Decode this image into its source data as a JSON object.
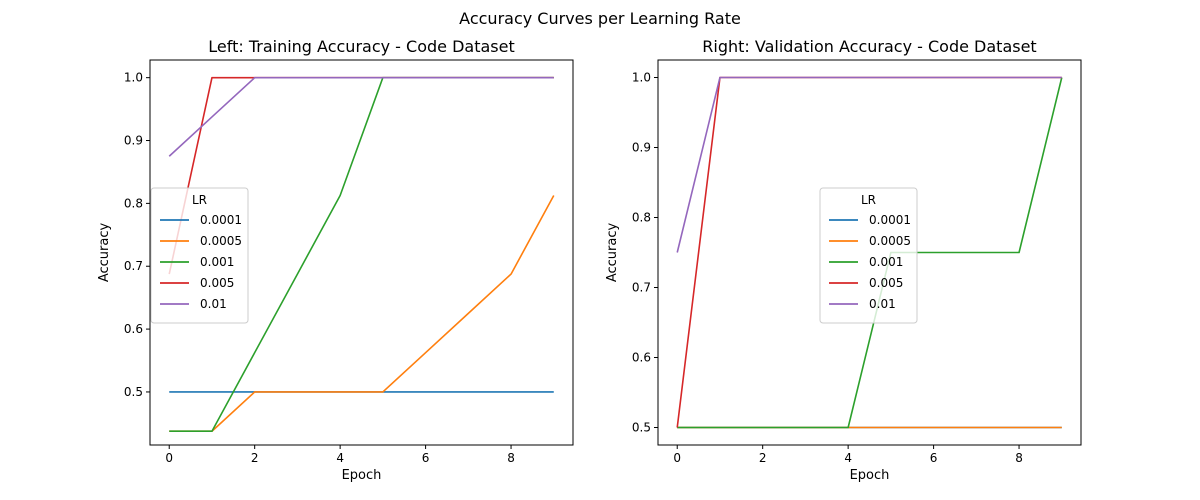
{
  "figure": {
    "suptitle": "Accuracy Curves per Learning Rate"
  },
  "colors": {
    "0.0001": "#1f77b4",
    "0.0005": "#ff7f0e",
    "0.001": "#2ca02c",
    "0.005": "#d62728",
    "0.01": "#9467bd"
  },
  "chart_data": [
    {
      "type": "line",
      "title": "Left: Training Accuracy - Code Dataset",
      "xlabel": "Epoch",
      "ylabel": "Accuracy",
      "xlim": [
        -0.45,
        9.45
      ],
      "ylim": [
        0.4156,
        1.0281
      ],
      "xticks": [
        0,
        2,
        4,
        6,
        8
      ],
      "xtick_labels": [
        "0",
        "2",
        "4",
        "6",
        "8"
      ],
      "yticks": [
        0.5,
        0.6,
        0.7,
        0.8,
        0.9,
        1.0
      ],
      "ytick_labels": [
        "0.5",
        "0.6",
        "0.7",
        "0.8",
        "0.9",
        "1.0"
      ],
      "grid": false,
      "legend": {
        "title": "LR",
        "position": "center-left"
      },
      "x": [
        0,
        1,
        2,
        3,
        4,
        5,
        6,
        7,
        8,
        9
      ],
      "series": [
        {
          "name": "0.0001",
          "values": [
            0.5,
            0.5,
            0.5,
            0.5,
            0.5,
            0.5,
            0.5,
            0.5,
            0.5,
            0.5
          ]
        },
        {
          "name": "0.0005",
          "values": [
            0.4375,
            0.4375,
            0.5,
            0.5,
            0.5,
            0.5,
            0.5625,
            0.625,
            0.6875,
            0.8125
          ]
        },
        {
          "name": "0.001",
          "values": [
            0.4375,
            0.4375,
            0.5625,
            0.6875,
            0.8125,
            1.0,
            1.0,
            1.0,
            1.0,
            1.0
          ]
        },
        {
          "name": "0.005",
          "values": [
            0.6875,
            1.0,
            1.0,
            1.0,
            1.0,
            1.0,
            1.0,
            1.0,
            1.0,
            1.0
          ]
        },
        {
          "name": "0.01",
          "values": [
            0.875,
            0.9375,
            1.0,
            1.0,
            1.0,
            1.0,
            1.0,
            1.0,
            1.0,
            1.0
          ]
        }
      ]
    },
    {
      "type": "line",
      "title": "Right: Validation Accuracy - Code Dataset",
      "xlabel": "Epoch",
      "ylabel": "Accuracy",
      "xlim": [
        -0.45,
        9.45
      ],
      "ylim": [
        0.475,
        1.025
      ],
      "xticks": [
        0,
        2,
        4,
        6,
        8
      ],
      "xtick_labels": [
        "0",
        "2",
        "4",
        "6",
        "8"
      ],
      "yticks": [
        0.5,
        0.6,
        0.7,
        0.8,
        0.9,
        1.0
      ],
      "ytick_labels": [
        "0.5",
        "0.6",
        "0.7",
        "0.8",
        "0.9",
        "1.0"
      ],
      "grid": false,
      "legend": {
        "title": "LR",
        "position": "center"
      },
      "x": [
        0,
        1,
        2,
        3,
        4,
        5,
        6,
        7,
        8,
        9
      ],
      "series": [
        {
          "name": "0.0001",
          "values": [
            0.5,
            0.5,
            0.5,
            0.5,
            0.5,
            0.5,
            0.5,
            0.5,
            0.5,
            0.5
          ]
        },
        {
          "name": "0.0005",
          "values": [
            0.5,
            0.5,
            0.5,
            0.5,
            0.5,
            0.5,
            0.5,
            0.5,
            0.5,
            0.5
          ]
        },
        {
          "name": "0.001",
          "values": [
            0.5,
            0.5,
            0.5,
            0.5,
            0.5,
            0.75,
            0.75,
            0.75,
            0.75,
            1.0
          ]
        },
        {
          "name": "0.005",
          "values": [
            0.5,
            1.0,
            1.0,
            1.0,
            1.0,
            1.0,
            1.0,
            1.0,
            1.0,
            1.0
          ]
        },
        {
          "name": "0.01",
          "values": [
            0.75,
            1.0,
            1.0,
            1.0,
            1.0,
            1.0,
            1.0,
            1.0,
            1.0,
            1.0
          ]
        }
      ]
    }
  ]
}
